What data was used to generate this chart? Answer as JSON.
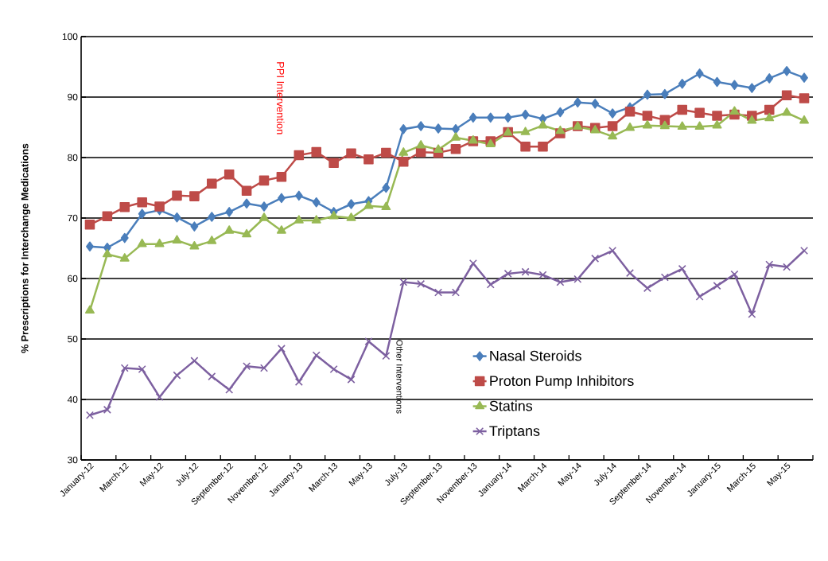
{
  "chart_data": {
    "type": "line",
    "ylabel": "% Prescriptions for Interchange Medications",
    "categories": [
      "January-12",
      null,
      "March-12",
      null,
      "May-12",
      null,
      "July-12",
      null,
      "September-12",
      null,
      "November-12",
      null,
      "January-13",
      null,
      "March-13",
      null,
      "May-13",
      null,
      "July-13",
      null,
      "September-13",
      null,
      "November-13",
      null,
      "January-14",
      null,
      "March-14",
      null,
      "May-14",
      null,
      "July-14",
      null,
      "September-14",
      null,
      "November-14",
      null,
      "January-15",
      null,
      "March-15",
      null,
      "May-15",
      null
    ],
    "series": [
      {
        "name": "Nasal Steroids",
        "color": "#4a7ebb",
        "marker": "diamond",
        "values": [
          65.3,
          65.1,
          66.7,
          70.7,
          71.3,
          70.1,
          68.6,
          70.2,
          71.0,
          72.4,
          71.9,
          73.3,
          73.7,
          72.6,
          71.0,
          72.3,
          72.8,
          75.0,
          84.7,
          85.2,
          84.8,
          84.7,
          86.6,
          86.6,
          86.6,
          87.1,
          86.4,
          87.5,
          89.1,
          88.9,
          87.3,
          88.3,
          90.4,
          90.5,
          92.2,
          93.9,
          92.5,
          92.0,
          91.5,
          93.1,
          94.3,
          93.2
        ]
      },
      {
        "name": "Proton Pump Inhibitors",
        "color": "#be4b48",
        "marker": "square",
        "values": [
          68.9,
          70.3,
          71.8,
          72.6,
          71.9,
          73.7,
          73.6,
          75.7,
          77.2,
          74.5,
          76.2,
          76.8,
          80.4,
          80.9,
          79.1,
          80.7,
          79.7,
          80.8,
          79.3,
          80.9,
          80.8,
          81.4,
          82.7,
          82.7,
          84.2,
          81.8,
          81.8,
          84.0,
          85.2,
          84.9,
          85.2,
          87.6,
          86.9,
          86.2,
          87.9,
          87.4,
          86.9,
          87.1,
          86.9,
          87.9,
          90.3,
          89.8
        ]
      },
      {
        "name": "Statins",
        "color": "#98b954",
        "marker": "triangle",
        "values": [
          54.7,
          64.0,
          63.3,
          65.7,
          65.7,
          66.3,
          65.3,
          66.2,
          67.9,
          67.3,
          70.0,
          67.9,
          69.6,
          69.6,
          70.3,
          70.0,
          72.0,
          71.8,
          80.8,
          82.0,
          81.3,
          83.3,
          82.8,
          82.2,
          84.1,
          84.2,
          85.3,
          84.4,
          85.1,
          84.5,
          83.5,
          84.9,
          85.3,
          85.2,
          85.1,
          85.1,
          85.3,
          87.6,
          86.1,
          86.5,
          87.4,
          86.1
        ]
      },
      {
        "name": "Triptans",
        "color": "#7d60a0",
        "marker": "cross",
        "values": [
          37.4,
          38.3,
          45.2,
          45.0,
          40.4,
          44.0,
          46.4,
          43.8,
          41.6,
          45.5,
          45.2,
          48.4,
          42.9,
          47.3,
          45.0,
          43.3,
          49.6,
          47.2,
          59.4,
          59.1,
          57.7,
          57.7,
          62.5,
          59.0,
          60.8,
          61.1,
          60.6,
          59.4,
          59.9,
          63.3,
          64.6,
          60.9,
          58.4,
          60.2,
          61.6,
          57.0,
          58.8,
          60.7,
          54.1,
          62.3,
          61.9,
          64.6
        ]
      }
    ],
    "ylim": [
      30,
      100
    ],
    "yticks": [
      30,
      40,
      50,
      60,
      70,
      80,
      90,
      100
    ],
    "grid": "y",
    "legend": "bottom right",
    "annotations": [
      "PPI Intervention",
      "Other Interventions"
    ]
  }
}
